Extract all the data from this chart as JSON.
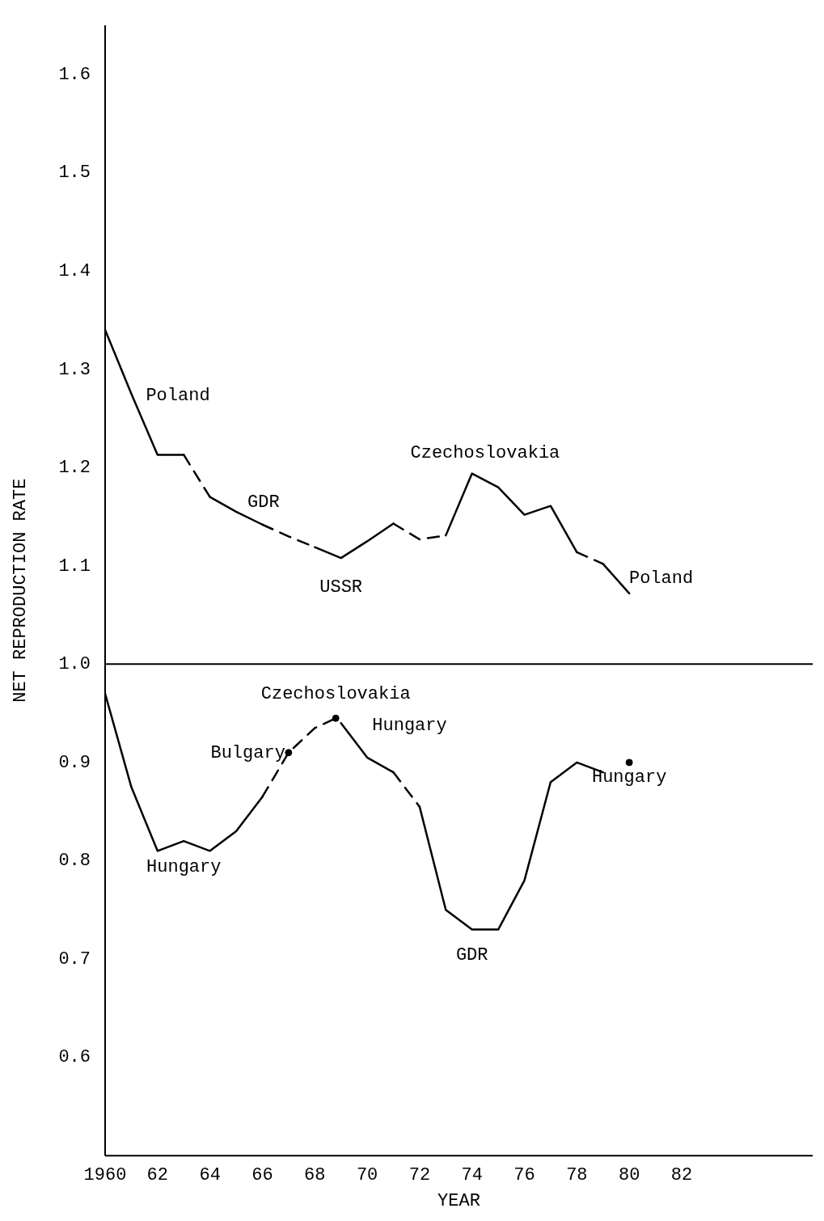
{
  "chart_data": {
    "type": "line",
    "xlabel": "YEAR",
    "ylabel": "NET REPRODUCTION RATE",
    "xlim": [
      1960,
      1987
    ],
    "ylim": [
      0.5,
      1.65
    ],
    "xticks": [
      {
        "value": 1960,
        "label": "1960"
      },
      {
        "value": 1962,
        "label": "62"
      },
      {
        "value": 1964,
        "label": "64"
      },
      {
        "value": 1966,
        "label": "66"
      },
      {
        "value": 1968,
        "label": "68"
      },
      {
        "value": 1970,
        "label": "70"
      },
      {
        "value": 1972,
        "label": "72"
      },
      {
        "value": 1974,
        "label": "74"
      },
      {
        "value": 1976,
        "label": "76"
      },
      {
        "value": 1978,
        "label": "78"
      },
      {
        "value": 1980,
        "label": "80"
      },
      {
        "value": 1982,
        "label": "82"
      }
    ],
    "yticks": [
      0.6,
      0.7,
      0.8,
      0.9,
      {
        "value": 1,
        "label": "1.0"
      },
      1.1,
      1.2,
      1.3,
      1.4,
      1.5,
      1.6
    ],
    "grid": false,
    "legend": false,
    "marker": "none",
    "ref_lines": [
      {
        "axis": "y",
        "value": 1.0,
        "color": "#000000"
      }
    ],
    "series": [
      {
        "color": "#000000",
        "line_style": "solid",
        "x": [
          1960,
          1961,
          1962,
          1963
        ],
        "values": [
          1.34,
          1.275,
          1.213,
          1.213
        ]
      },
      {
        "color": "#000000",
        "line_style": "dashed",
        "x": [
          1963,
          1964
        ],
        "values": [
          1.213,
          1.17
        ]
      },
      {
        "color": "#000000",
        "line_style": "solid",
        "x": [
          1964,
          1965,
          1966
        ],
        "values": [
          1.17,
          1.155,
          1.142
        ]
      },
      {
        "color": "#000000",
        "line_style": "dashed",
        "x": [
          1966,
          1967,
          1968
        ],
        "values": [
          1.142,
          1.13,
          1.119
        ]
      },
      {
        "color": "#000000",
        "line_style": "solid",
        "x": [
          1968,
          1969,
          1970,
          1971
        ],
        "values": [
          1.119,
          1.108,
          1.125,
          1.143
        ]
      },
      {
        "color": "#000000",
        "line_style": "dashed",
        "x": [
          1971,
          1972,
          1973
        ],
        "values": [
          1.143,
          1.127,
          1.131
        ]
      },
      {
        "color": "#000000",
        "line_style": "solid",
        "x": [
          1973,
          1974,
          1975,
          1976,
          1977,
          1978
        ],
        "values": [
          1.131,
          1.194,
          1.18,
          1.152,
          1.161,
          1.114
        ]
      },
      {
        "color": "#000000",
        "line_style": "dashed",
        "x": [
          1978,
          1979
        ],
        "values": [
          1.114,
          1.102
        ]
      },
      {
        "color": "#000000",
        "line_style": "solid",
        "x": [
          1979,
          1980
        ],
        "values": [
          1.102,
          1.072
        ]
      },
      {
        "color": "#000000",
        "line_style": "solid",
        "x": [
          1960,
          1961,
          1962,
          1963,
          1964,
          1965,
          1966
        ],
        "values": [
          0.97,
          0.875,
          0.81,
          0.82,
          0.81,
          0.83,
          0.865
        ]
      },
      {
        "color": "#000000",
        "line_style": "dashed",
        "x": [
          1966,
          1967,
          1968,
          1968.8
        ],
        "values": [
          0.865,
          0.91,
          0.935,
          0.945
        ]
      },
      {
        "color": "#000000",
        "line_style": "solid",
        "x": [
          1969,
          1970,
          1971
        ],
        "values": [
          0.94,
          0.905,
          0.89
        ]
      },
      {
        "color": "#000000",
        "line_style": "dashed",
        "x": [
          1971,
          1972
        ],
        "values": [
          0.89,
          0.855
        ]
      },
      {
        "color": "#000000",
        "line_style": "solid",
        "x": [
          1972,
          1973,
          1974,
          1975,
          1976,
          1977,
          1978,
          1979
        ],
        "values": [
          0.855,
          0.75,
          0.73,
          0.73,
          0.78,
          0.88,
          0.9,
          0.89
        ]
      },
      {
        "type": "scatter",
        "marker": "circle",
        "color": "#000000",
        "x": [
          1967,
          1968.8,
          1980
        ],
        "values": [
          0.91,
          0.945,
          0.9
        ]
      }
    ],
    "annotations": [
      {
        "text": "Poland",
        "x": 1961,
        "y": 1.275
      },
      {
        "text": "GDR",
        "x": 1965,
        "y": 1.155
      },
      {
        "text": "USSR",
        "x": 1969,
        "y": 1.108
      },
      {
        "text": "Czechoslovakia",
        "x": 1974.5,
        "y": 1.187
      },
      {
        "text": "Poland",
        "x": 1979.5,
        "y": 1.087
      },
      {
        "text": "Czechoslovakia",
        "x": 1968.8,
        "y": 0.945
      },
      {
        "text": "Bulgary",
        "x": 1967,
        "y": 0.91
      },
      {
        "text": "Hungary",
        "x": 1963,
        "y": 0.82
      },
      {
        "text": "Hungary",
        "x": 1970.5,
        "y": 0.898
      },
      {
        "text": "GDR",
        "x": 1974,
        "y": 0.73
      },
      {
        "text": "Hungary",
        "x": 1980,
        "y": 0.9
      }
    ]
  }
}
